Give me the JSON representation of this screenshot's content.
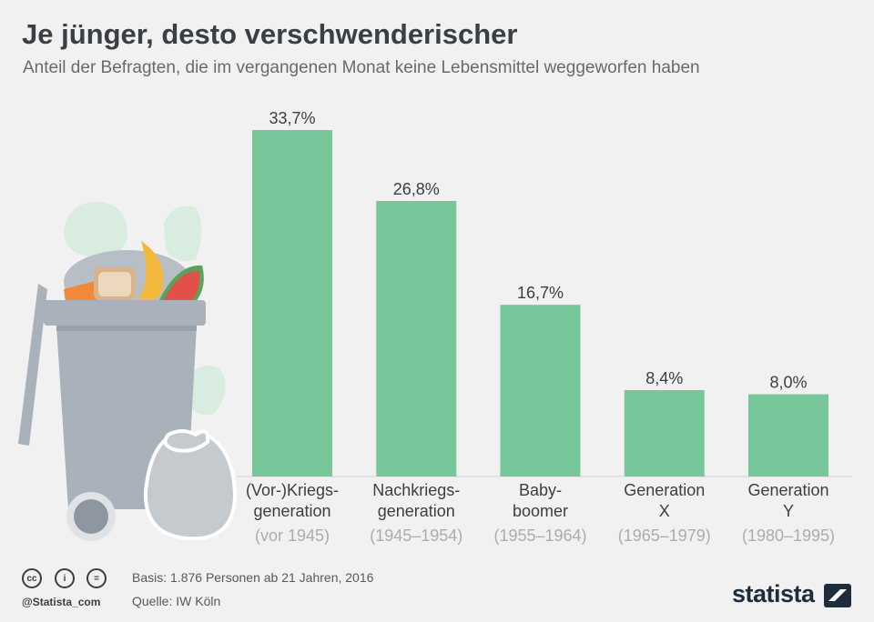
{
  "header": {
    "title": "Je jünger, desto verschwenderischer",
    "subtitle": "Anteil der Befragten, die im vergangenen Monat keine Lebensmittel weggeworfen haben"
  },
  "chart_data": {
    "type": "bar",
    "categories": [
      {
        "lines": [
          "(Vor-)Kriegs-",
          "generation"
        ],
        "sub": "(vor 1945)"
      },
      {
        "lines": [
          "Nachkriegs-",
          "generation"
        ],
        "sub": "(1945–1954)"
      },
      {
        "lines": [
          "Baby-",
          "boomer"
        ],
        "sub": "(1955–1964)"
      },
      {
        "lines": [
          "Generation",
          "X"
        ],
        "sub": "(1965–1979)"
      },
      {
        "lines": [
          "Generation",
          "Y"
        ],
        "sub": "(1980–1995)"
      }
    ],
    "values": [
      33.7,
      26.8,
      16.7,
      8.4,
      8.0
    ],
    "value_labels": [
      "33,7%",
      "26,8%",
      "16,7%",
      "8,4%",
      "8,0%"
    ],
    "ylim": [
      0,
      33.7
    ],
    "grid": false,
    "colors": {
      "bar": "#77c79a",
      "label": "#3a3f44",
      "sublabel": "#a9adb1",
      "baseline": "#cfd2d5"
    }
  },
  "illustration": {
    "name": "trash-bin-with-food",
    "colors": {
      "bin": "#a9b1bb",
      "bin_dark": "#8e969f",
      "bag": "#c5cacf",
      "smell": "#cfe9da"
    }
  },
  "footer": {
    "basis": "Basis: 1.876 Personen ab 21 Jahren, 2016",
    "source": "Quelle: IW Köln",
    "handle": "@Statista_com",
    "brand": "statista",
    "license_icons": [
      "cc-icon",
      "by-icon",
      "nd-icon"
    ],
    "license_glyphs": [
      "cc",
      "i",
      "="
    ]
  }
}
